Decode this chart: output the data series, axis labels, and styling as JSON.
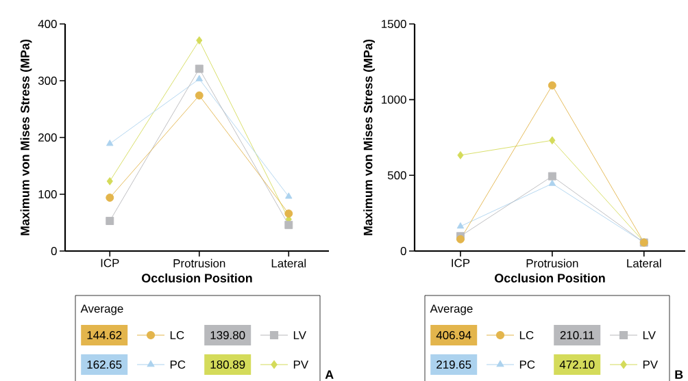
{
  "chart_data": [
    {
      "type": "line",
      "xlabel": "Occlusion Position",
      "ylabel": "Maximum von Mises Stress (MPa)",
      "categories": [
        "ICP",
        "Protrusion",
        "Lateral"
      ],
      "ylim": [
        0,
        400
      ],
      "yticks": [
        0,
        100,
        200,
        300,
        400
      ],
      "legend": "bottom",
      "legend_title": "Average",
      "line_style": "solid",
      "series": [
        {
          "name": "LC",
          "color": "#e3b54c",
          "marker": "circle",
          "values": [
            94,
            274,
            66
          ]
        },
        {
          "name": "LV",
          "color": "#b8b9bc",
          "marker": "square",
          "values": [
            53,
            321,
            46
          ]
        },
        {
          "name": "PC",
          "color": "#acd2ee",
          "marker": "triangle",
          "values": [
            189,
            303,
            96
          ]
        },
        {
          "name": "PV",
          "color": "#d4db5a",
          "marker": "diamond",
          "values": [
            123,
            371,
            56
          ]
        }
      ],
      "annotations": [
        "144.62",
        "139.80",
        "162.65",
        "180.89",
        "A"
      ]
    },
    {
      "type": "line",
      "xlabel": "Occlusion Position",
      "ylabel": "Maximum von Mises Stress (MPa)",
      "categories": [
        "ICP",
        "Protrusion",
        "Lateral"
      ],
      "ylim": [
        0,
        1500
      ],
      "yticks": [
        0,
        500,
        1000,
        1500
      ],
      "legend": "bottom",
      "legend_title": "Average",
      "line_style": "solid",
      "series": [
        {
          "name": "LC",
          "color": "#e3b54c",
          "marker": "circle",
          "values": [
            78,
            1094,
            56
          ]
        },
        {
          "name": "LV",
          "color": "#b8b9bc",
          "marker": "square",
          "values": [
            98,
            494,
            56
          ]
        },
        {
          "name": "PC",
          "color": "#acd2ee",
          "marker": "triangle",
          "values": [
            163,
            445,
            56
          ]
        },
        {
          "name": "PV",
          "color": "#d4db5a",
          "marker": "diamond",
          "values": [
            633,
            731,
            60
          ]
        }
      ],
      "annotations": [
        "406.94",
        "210.11",
        "219.65",
        "472.10",
        "B"
      ]
    }
  ]
}
